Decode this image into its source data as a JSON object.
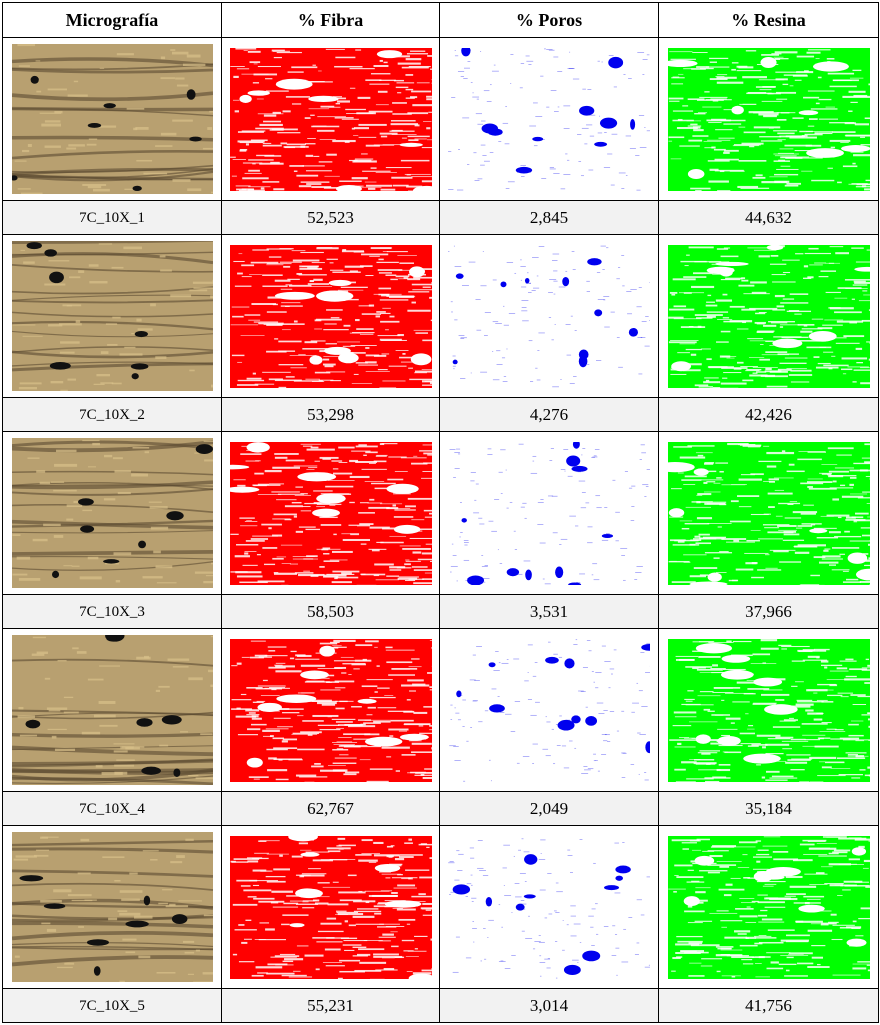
{
  "header": [
    "Micrografía",
    "% Fibra",
    "% Poros",
    "% Resina"
  ],
  "rows": [
    {
      "name": "7C_10X_1",
      "fibra": "52,523",
      "poros": "2,845",
      "resina": "44,632"
    },
    {
      "name": "7C_10X_2",
      "fibra": "53,298",
      "poros": "4,276",
      "resina": "42,426"
    },
    {
      "name": "7C_10X_3",
      "fibra": "58,503",
      "poros": "3,531",
      "resina": "37,966"
    },
    {
      "name": "7C_10X_4",
      "fibra": "62,767",
      "poros": "2,049",
      "resina": "35,184"
    },
    {
      "name": "7C_10X_5",
      "fibra": "55,231",
      "poros": "3,014",
      "resina": "41,756"
    }
  ],
  "colors": {
    "fibra": "#ff0000",
    "poros": "#0000ee",
    "resina": "#00ff00",
    "micro": "#b8a070",
    "label_bg": "#f2f2f2"
  }
}
